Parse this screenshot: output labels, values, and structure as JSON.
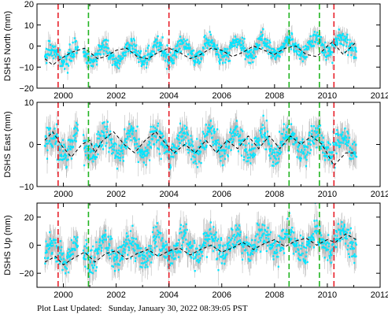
{
  "footer": {
    "label": "Plot Last Updated:",
    "date": "Sunday, January 30, 2022 08:39:05 PST"
  },
  "colors": {
    "points": "#00e5ff",
    "error_bars": "#b4b4b4",
    "model": "#000000",
    "red_marker": "#e8202a",
    "green_marker": "#22b422"
  },
  "chart_data": [
    {
      "type": "scatter",
      "ylabel": "DSHS North (mm)",
      "xlim": [
        1999.0,
        2012.0
      ],
      "ylim": [
        -20,
        20
      ],
      "x_ticks": [
        2000,
        2002,
        2004,
        2006,
        2008,
        2010,
        2012
      ],
      "y_ticks": [
        -20,
        -10,
        0,
        10,
        20
      ],
      "x_tick_labels": [
        "2000",
        "2002",
        "2004",
        "2006",
        "2008",
        "2010",
        "2012"
      ],
      "y_tick_labels": [
        "−20",
        "−10",
        "0",
        "10",
        "20"
      ],
      "data_range": [
        1999.3,
        2011.1
      ],
      "series": [
        {
          "role": "observed",
          "trend_start": -5,
          "trend_end": 1,
          "amplitude": 3.5,
          "noise": 2.0
        },
        {
          "role": "model",
          "points": [
            [
              1999.3,
              -6
            ],
            [
              1999.6,
              -9
            ],
            [
              1999.9,
              -6
            ],
            [
              2000.3,
              -3
            ],
            [
              2000.8,
              -1
            ],
            [
              2001.0,
              -3
            ],
            [
              2001.3,
              -6
            ],
            [
              2001.6,
              -5
            ],
            [
              2002.0,
              -2
            ],
            [
              2002.4,
              -1
            ],
            [
              2002.8,
              -5
            ],
            [
              2003.2,
              -6
            ],
            [
              2003.6,
              -3
            ],
            [
              2004.0,
              -1
            ],
            [
              2004.4,
              -3
            ],
            [
              2004.8,
              -6
            ],
            [
              2005.2,
              -4
            ],
            [
              2005.6,
              -1
            ],
            [
              2006.0,
              -2
            ],
            [
              2006.4,
              -5
            ],
            [
              2006.8,
              -3
            ],
            [
              2007.2,
              0
            ],
            [
              2007.6,
              -2
            ],
            [
              2008.0,
              -4
            ],
            [
              2008.4,
              -1
            ],
            [
              2008.8,
              0
            ],
            [
              2009.2,
              -4
            ],
            [
              2009.6,
              -5
            ],
            [
              2010.0,
              0
            ],
            [
              2010.2,
              2
            ],
            [
              2010.6,
              -4
            ],
            [
              2011.1,
              2
            ]
          ]
        }
      ],
      "red_markers": [
        1999.8,
        2004.0,
        2010.25
      ],
      "green_markers": [
        2000.95,
        2008.55,
        2009.7
      ]
    },
    {
      "type": "scatter",
      "ylabel": "DSHS East (mm)",
      "xlim": [
        1999.0,
        2012.0
      ],
      "ylim": [
        -10,
        10
      ],
      "x_ticks": [
        2000,
        2002,
        2004,
        2006,
        2008,
        2010,
        2012
      ],
      "y_ticks": [
        -10,
        0,
        10
      ],
      "x_tick_labels": [
        "2000",
        "2002",
        "2004",
        "2006",
        "2008",
        "2010",
        "2012"
      ],
      "y_tick_labels": [
        "−10",
        "0",
        "10"
      ],
      "data_range": [
        1999.3,
        2011.1
      ],
      "series": [
        {
          "role": "observed",
          "trend_start": 0,
          "trend_end": 0,
          "amplitude": 2.5,
          "noise": 1.6
        },
        {
          "role": "model",
          "points": [
            [
              1999.3,
              1
            ],
            [
              1999.6,
              3
            ],
            [
              1999.9,
              0
            ],
            [
              2000.3,
              -3
            ],
            [
              2000.7,
              0
            ],
            [
              2001.0,
              1
            ],
            [
              2001.2,
              -2
            ],
            [
              2001.5,
              1
            ],
            [
              2001.9,
              3
            ],
            [
              2002.3,
              0
            ],
            [
              2002.7,
              -2
            ],
            [
              2003.1,
              1
            ],
            [
              2003.5,
              3
            ],
            [
              2003.9,
              0
            ],
            [
              2004.2,
              -2
            ],
            [
              2004.6,
              0
            ],
            [
              2005.0,
              -2
            ],
            [
              2005.4,
              1
            ],
            [
              2005.8,
              -2
            ],
            [
              2006.2,
              1
            ],
            [
              2006.6,
              -1
            ],
            [
              2007.0,
              2
            ],
            [
              2007.4,
              -1
            ],
            [
              2007.8,
              2
            ],
            [
              2008.2,
              -1
            ],
            [
              2008.6,
              2
            ],
            [
              2009.0,
              0
            ],
            [
              2009.4,
              2
            ],
            [
              2009.8,
              0
            ],
            [
              2010.25,
              -5
            ],
            [
              2010.7,
              -2
            ],
            [
              2011.1,
              -2
            ]
          ]
        }
      ],
      "red_markers": [
        1999.8,
        2004.0,
        2010.25
      ],
      "green_markers": [
        2000.95,
        2008.55,
        2009.7
      ]
    },
    {
      "type": "scatter",
      "ylabel": "DSHS Up (mm)",
      "xlim": [
        1999.0,
        2012.0
      ],
      "ylim": [
        -30,
        30
      ],
      "x_ticks": [
        2000,
        2002,
        2004,
        2006,
        2008,
        2010,
        2012
      ],
      "y_ticks": [
        -20,
        0,
        20
      ],
      "x_tick_labels": [
        "2000",
        "2002",
        "2004",
        "2006",
        "2008",
        "2010",
        "2012"
      ],
      "y_tick_labels": [
        "−20",
        "0",
        "20"
      ],
      "data_range": [
        1999.3,
        2011.1
      ],
      "series": [
        {
          "role": "observed",
          "trend_start": -6,
          "trend_end": 4,
          "amplitude": 7.0,
          "noise": 5.0
        },
        {
          "role": "model",
          "points": [
            [
              1999.3,
              -12
            ],
            [
              1999.7,
              -8
            ],
            [
              2000.0,
              -14
            ],
            [
              2000.4,
              -9
            ],
            [
              2000.8,
              -5
            ],
            [
              2001.2,
              -12
            ],
            [
              2001.6,
              -6
            ],
            [
              2002.0,
              -4
            ],
            [
              2002.4,
              -10
            ],
            [
              2002.8,
              -6
            ],
            [
              2003.2,
              -3
            ],
            [
              2003.6,
              -8
            ],
            [
              2004.0,
              -4
            ],
            [
              2004.4,
              -2
            ],
            [
              2004.8,
              -7
            ],
            [
              2005.2,
              -3
            ],
            [
              2005.6,
              0
            ],
            [
              2006.0,
              -5
            ],
            [
              2006.4,
              -2
            ],
            [
              2006.8,
              2
            ],
            [
              2007.2,
              -3
            ],
            [
              2007.6,
              1
            ],
            [
              2008.0,
              4
            ],
            [
              2008.4,
              -1
            ],
            [
              2008.8,
              3
            ],
            [
              2009.2,
              5
            ],
            [
              2009.6,
              0
            ],
            [
              2010.0,
              4
            ],
            [
              2010.3,
              2
            ],
            [
              2010.7,
              8
            ],
            [
              2011.1,
              4
            ]
          ]
        }
      ],
      "red_markers": [
        1999.8,
        2004.0,
        2010.25
      ],
      "green_markers": [
        2000.95,
        2008.55,
        2009.7
      ]
    }
  ]
}
